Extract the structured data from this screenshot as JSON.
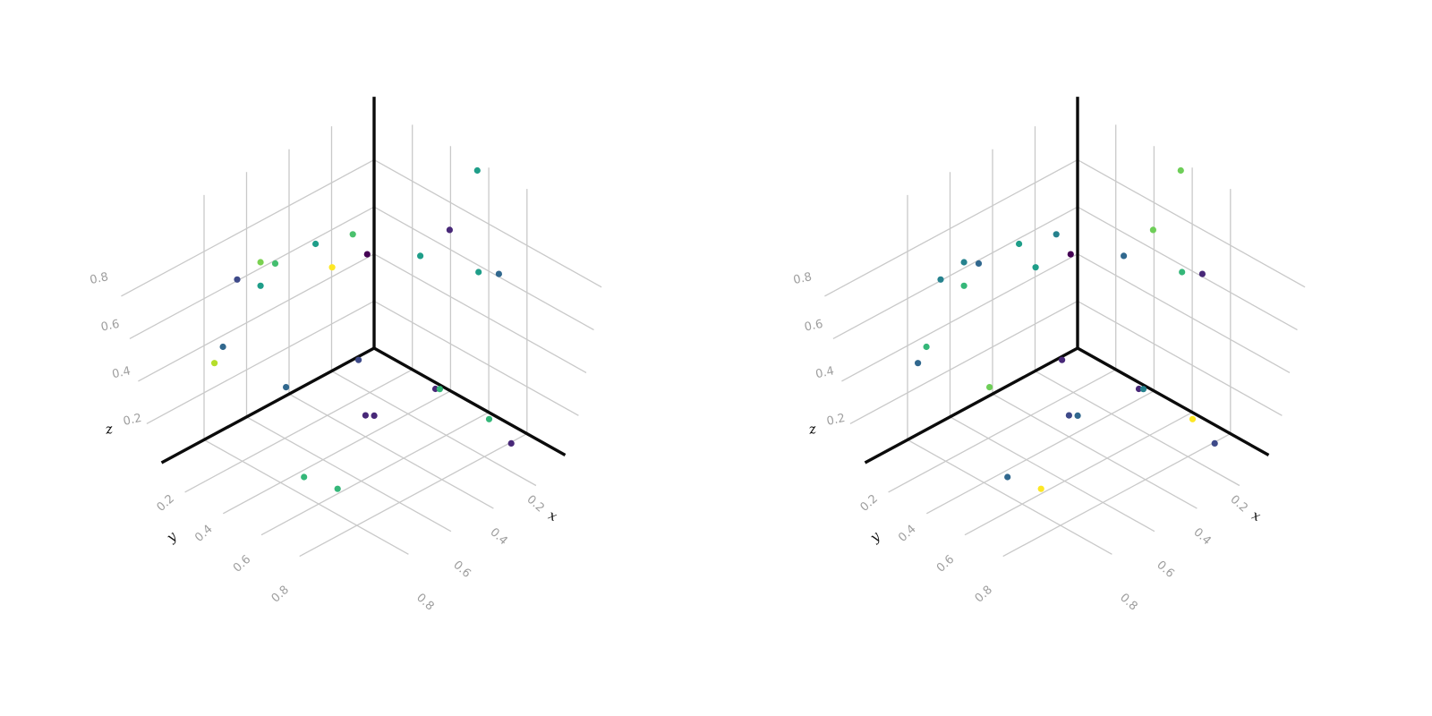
{
  "figure": {
    "background": "#ffffff",
    "panel_count": 2
  },
  "chart_data": {
    "type": "scatter",
    "subtype": "scatter3d",
    "title": "",
    "colormap": "viridis",
    "panels": [
      {
        "id": "left",
        "color_key": "color_left"
      },
      {
        "id": "right",
        "color_key": "color_right"
      }
    ],
    "axes": {
      "x_label": "x",
      "y_label": "y",
      "z_label": "z",
      "ticks": [
        0.2,
        0.4,
        0.6,
        0.8
      ],
      "tick_labels": [
        "0.2",
        "0.4",
        "0.6",
        "0.8"
      ],
      "xlim": [
        0,
        1
      ],
      "ylim": [
        0,
        1
      ],
      "zlim": [
        0,
        1
      ],
      "grid": true,
      "grid_color": "#c9c9c9",
      "tick_color": "#9e9e9e",
      "axis_line_color": "#0b0b0b"
    },
    "points": [
      {
        "x": 0.0,
        "y": 0.54,
        "z": 1.0,
        "color_left": "#1f9e89",
        "color_right": "#6ece58"
      },
      {
        "x": 0.22,
        "y": 0.64,
        "z": 0.9,
        "color_left": "#482878",
        "color_right": "#6ece58"
      },
      {
        "x": 0.37,
        "y": 0.3,
        "z": 0.8,
        "color_left": "#4ac16d",
        "color_right": "#26828e"
      },
      {
        "x": 0.5,
        "y": 0.25,
        "z": 0.8,
        "color_left": "#1f9e89",
        "color_right": "#1f9e89"
      },
      {
        "x": 0.32,
        "y": 0.32,
        "z": 0.7,
        "color_left": "#440154",
        "color_right": "#440154"
      },
      {
        "x": 0.25,
        "y": 0.52,
        "z": 0.75,
        "color_left": "#1f9e89",
        "color_right": "#31688e"
      },
      {
        "x": 0.66,
        "y": 0.14,
        "z": 0.75,
        "color_left": "#7ad151",
        "color_right": "#26828e"
      },
      {
        "x": 0.6,
        "y": 0.15,
        "z": 0.72,
        "color_left": "#44bf70",
        "color_right": "#31688e"
      },
      {
        "x": 0.44,
        "y": 0.27,
        "z": 0.68,
        "color_left": "#fde725",
        "color_right": "#1f9e89"
      },
      {
        "x": 0.21,
        "y": 0.78,
        "z": 0.78,
        "color_left": "#1f9e89",
        "color_right": "#35b779"
      },
      {
        "x": 0.24,
        "y": 0.92,
        "z": 0.85,
        "color_left": "#31688e",
        "color_right": "#482878"
      },
      {
        "x": 0.77,
        "y": 0.14,
        "z": 0.73,
        "color_left": "#3e4a89",
        "color_right": "#26828e"
      },
      {
        "x": 0.66,
        "y": 0.14,
        "z": 0.65,
        "color_left": "#1f9e89",
        "color_right": "#35b779"
      },
      {
        "x": 0.81,
        "y": 0.11,
        "z": 0.45,
        "color_left": "#31688e",
        "color_right": "#35b779"
      },
      {
        "x": 0.85,
        "y": 0.11,
        "z": 0.4,
        "color_left": "#b5de2b",
        "color_right": "#31688e"
      },
      {
        "x": 0.37,
        "y": 0.33,
        "z": 0.28,
        "color_left": "#3e4a89",
        "color_right": "#482878"
      },
      {
        "x": 0.63,
        "y": 0.24,
        "z": 0.25,
        "color_left": "#31688e",
        "color_right": "#6ece58"
      },
      {
        "x": 0.35,
        "y": 0.71,
        "z": 0.32,
        "color_left": "#482878",
        "color_right": "#482878"
      },
      {
        "x": 0.32,
        "y": 0.7,
        "z": 0.3,
        "color_left": "#35b779",
        "color_right": "#26828e"
      },
      {
        "x": 0.49,
        "y": 0.5,
        "z": 0.18,
        "color_left": "#482878",
        "color_right": "#3e4a89"
      },
      {
        "x": 0.44,
        "y": 0.49,
        "z": 0.15,
        "color_left": "#482878",
        "color_right": "#31688e"
      },
      {
        "x": 0.25,
        "y": 0.88,
        "z": 0.22,
        "color_left": "#35b779",
        "color_right": "#fde725"
      },
      {
        "x": 0.2,
        "y": 0.94,
        "z": 0.12,
        "color_left": "#482878",
        "color_right": "#3e4a89"
      },
      {
        "x": 0.77,
        "y": 0.49,
        "z": 0.05,
        "color_left": "#35b779",
        "color_right": "#31688e"
      },
      {
        "x": 0.72,
        "y": 0.61,
        "z": 0.03,
        "color_left": "#35b779",
        "color_right": "#fde725"
      }
    ]
  }
}
